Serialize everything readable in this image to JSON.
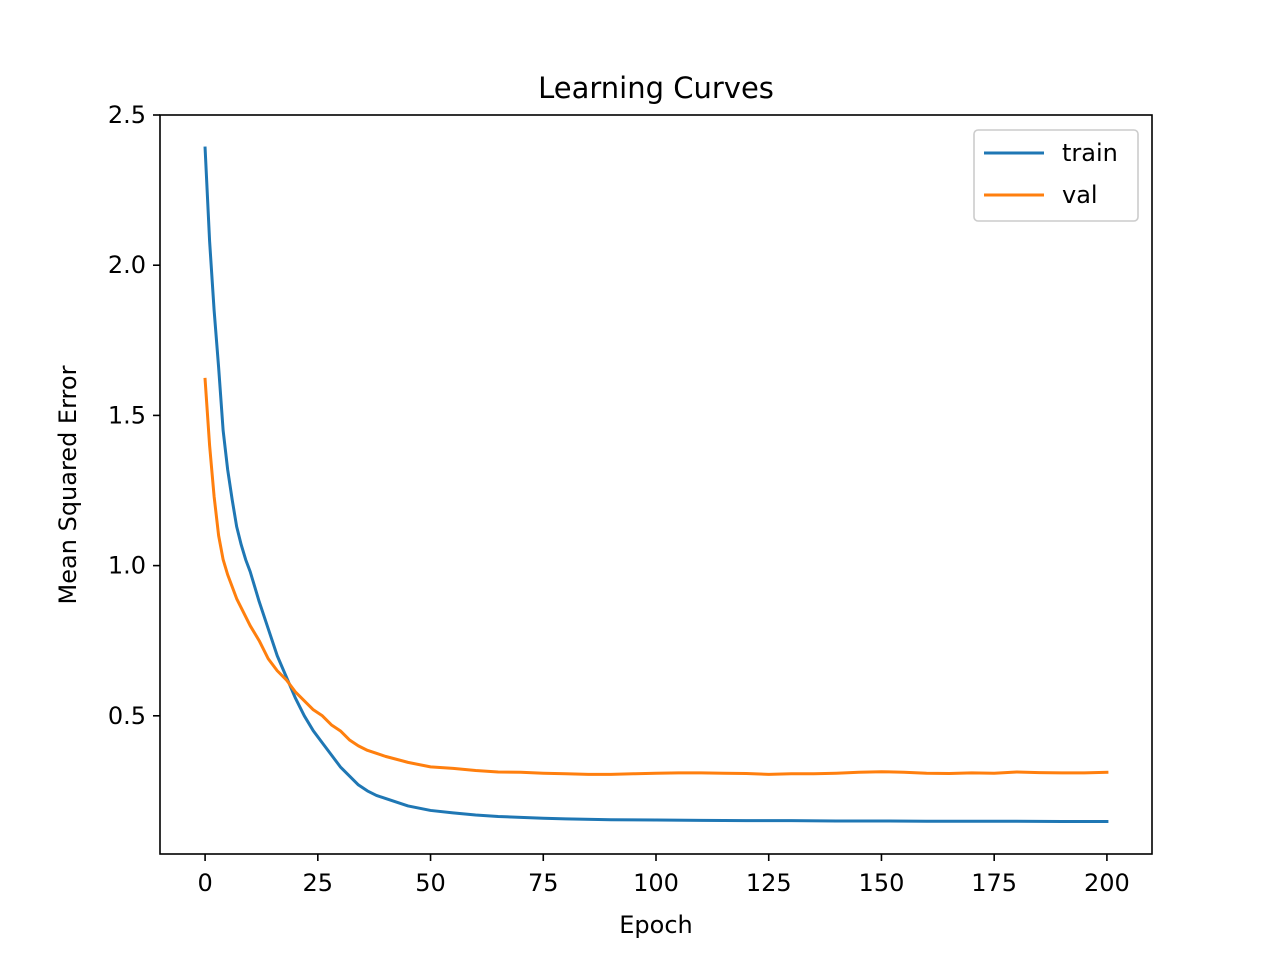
{
  "chart_data": {
    "type": "line",
    "title": "Learning Curves",
    "xlabel": "Epoch",
    "ylabel": "Mean Squared Error",
    "xlim": [
      -10,
      210
    ],
    "ylim": [
      0.04,
      2.5
    ],
    "xticks": [
      0,
      25,
      50,
      75,
      100,
      125,
      150,
      175,
      200
    ],
    "yticks": [
      0.5,
      1.0,
      1.5,
      2.0,
      2.5
    ],
    "xtick_labels": [
      "0",
      "25",
      "50",
      "75",
      "100",
      "125",
      "150",
      "175",
      "200"
    ],
    "ytick_labels": [
      "0.5",
      "1.0",
      "1.5",
      "2.0",
      "2.5"
    ],
    "grid": false,
    "legend_position": "top-right",
    "series": [
      {
        "name": "train",
        "color": "#1f77b4",
        "x": [
          0,
          1,
          2,
          3,
          4,
          5,
          6,
          7,
          8,
          9,
          10,
          12,
          14,
          16,
          18,
          20,
          22,
          24,
          26,
          28,
          30,
          32,
          34,
          36,
          38,
          40,
          45,
          50,
          55,
          60,
          65,
          70,
          75,
          80,
          90,
          100,
          110,
          120,
          130,
          140,
          150,
          160,
          170,
          180,
          190,
          200
        ],
        "y": [
          2.39,
          2.08,
          1.85,
          1.66,
          1.45,
          1.32,
          1.22,
          1.13,
          1.07,
          1.02,
          0.98,
          0.88,
          0.79,
          0.7,
          0.63,
          0.56,
          0.5,
          0.45,
          0.41,
          0.37,
          0.33,
          0.3,
          0.27,
          0.25,
          0.235,
          0.225,
          0.2,
          0.185,
          0.177,
          0.17,
          0.165,
          0.162,
          0.159,
          0.157,
          0.154,
          0.153,
          0.152,
          0.151,
          0.151,
          0.15,
          0.15,
          0.149,
          0.149,
          0.149,
          0.148,
          0.148
        ]
      },
      {
        "name": "val",
        "color": "#ff7f0e",
        "x": [
          0,
          1,
          2,
          3,
          4,
          5,
          6,
          7,
          8,
          9,
          10,
          12,
          14,
          16,
          18,
          20,
          22,
          24,
          26,
          28,
          30,
          32,
          34,
          36,
          38,
          40,
          45,
          50,
          55,
          60,
          65,
          70,
          75,
          80,
          85,
          90,
          95,
          100,
          105,
          110,
          115,
          120,
          125,
          130,
          135,
          140,
          145,
          150,
          155,
          160,
          165,
          170,
          175,
          180,
          185,
          190,
          195,
          200
        ],
        "y": [
          1.62,
          1.4,
          1.23,
          1.1,
          1.02,
          0.97,
          0.93,
          0.89,
          0.86,
          0.83,
          0.8,
          0.75,
          0.69,
          0.65,
          0.62,
          0.58,
          0.55,
          0.52,
          0.5,
          0.47,
          0.45,
          0.42,
          0.4,
          0.385,
          0.375,
          0.365,
          0.345,
          0.33,
          0.325,
          0.318,
          0.313,
          0.312,
          0.309,
          0.307,
          0.305,
          0.305,
          0.307,
          0.309,
          0.31,
          0.31,
          0.309,
          0.308,
          0.305,
          0.307,
          0.307,
          0.309,
          0.312,
          0.314,
          0.312,
          0.309,
          0.308,
          0.31,
          0.309,
          0.313,
          0.311,
          0.31,
          0.31,
          0.312
        ]
      }
    ]
  }
}
